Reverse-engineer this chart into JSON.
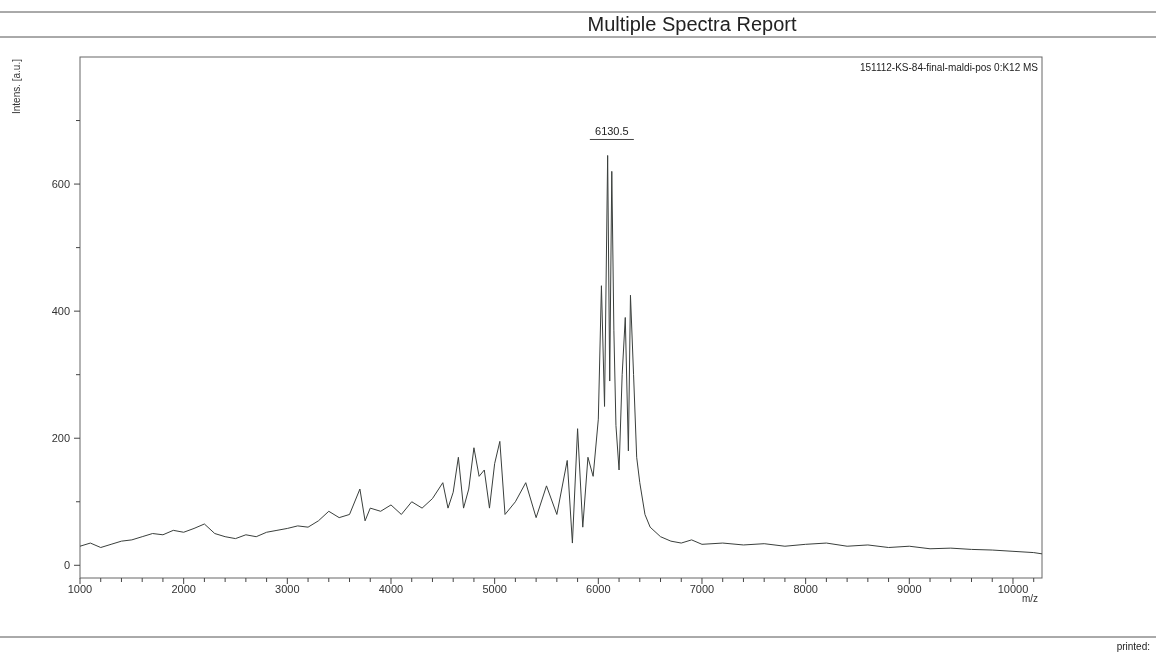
{
  "chart_data": {
    "type": "line",
    "title": "Multiple Spectra Report",
    "xlabel": "m/z",
    "ylabel": "Intens. [a.u.]",
    "annotations": [
      "151112-KS-84-final-maldi-pos 0:K12 MS",
      {
        "text": "6130.5",
        "x": 6130.5,
        "y": 645
      },
      "printed:"
    ],
    "xlim": [
      1000,
      10280
    ],
    "ylim": [
      -20,
      800
    ],
    "xticks": [
      1000,
      {
        "value": 1200,
        "label": null
      },
      {
        "value": 1400,
        "label": null
      },
      {
        "value": 1600,
        "label": null
      },
      {
        "value": 1800,
        "label": null
      },
      2000,
      {
        "value": 2200,
        "label": null
      },
      {
        "value": 2400,
        "label": null
      },
      {
        "value": 2600,
        "label": null
      },
      {
        "value": 2800,
        "label": null
      },
      3000,
      {
        "value": 3200,
        "label": null
      },
      {
        "value": 3400,
        "label": null
      },
      {
        "value": 3600,
        "label": null
      },
      {
        "value": 3800,
        "label": null
      },
      4000,
      {
        "value": 4200,
        "label": null
      },
      {
        "value": 4400,
        "label": null
      },
      {
        "value": 4600,
        "label": null
      },
      {
        "value": 4800,
        "label": null
      },
      5000,
      {
        "value": 5200,
        "label": null
      },
      {
        "value": 5400,
        "label": null
      },
      {
        "value": 5600,
        "label": null
      },
      {
        "value": 5800,
        "label": null
      },
      6000,
      {
        "value": 6200,
        "label": null
      },
      {
        "value": 6400,
        "label": null
      },
      {
        "value": 6600,
        "label": null
      },
      {
        "value": 6800,
        "label": null
      },
      7000,
      {
        "value": 7200,
        "label": null
      },
      {
        "value": 7400,
        "label": null
      },
      {
        "value": 7600,
        "label": null
      },
      {
        "value": 7800,
        "label": null
      },
      8000,
      {
        "value": 8200,
        "label": null
      },
      {
        "value": 8400,
        "label": null
      },
      {
        "value": 8600,
        "label": null
      },
      {
        "value": 8800,
        "label": null
      },
      9000,
      {
        "value": 9200,
        "label": null
      },
      {
        "value": 9400,
        "label": null
      },
      {
        "value": 9600,
        "label": null
      },
      {
        "value": 9800,
        "label": null
      },
      10000,
      {
        "value": 10200,
        "label": null
      }
    ],
    "yticks": [
      0,
      {
        "value": 100,
        "label": null
      },
      200,
      {
        "value": 300,
        "label": null
      },
      400,
      {
        "value": 500,
        "label": null
      },
      600,
      {
        "value": 700,
        "label": null
      }
    ],
    "grid": false,
    "marker": "none",
    "line_style": "solid",
    "series": [
      {
        "color": "#3a3f3c",
        "x": [
          1000,
          1100,
          1200,
          1300,
          1400,
          1500,
          1600,
          1700,
          1800,
          1900,
          2000,
          2100,
          2200,
          2300,
          2400,
          2500,
          2600,
          2700,
          2800,
          2900,
          3000,
          3100,
          3200,
          3300,
          3400,
          3500,
          3600,
          3700,
          3750,
          3800,
          3900,
          4000,
          4100,
          4200,
          4300,
          4400,
          4500,
          4550,
          4600,
          4650,
          4700,
          4750,
          4800,
          4850,
          4900,
          4950,
          5000,
          5050,
          5100,
          5200,
          5300,
          5400,
          5500,
          5600,
          5700,
          5750,
          5800,
          5850,
          5900,
          5950,
          6000,
          6030,
          6060,
          6090,
          6110,
          6130,
          6150,
          6170,
          6200,
          6230,
          6260,
          6290,
          6310,
          6340,
          6370,
          6400,
          6450,
          6500,
          6600,
          6700,
          6800,
          6900,
          7000,
          7200,
          7400,
          7600,
          7800,
          8000,
          8200,
          8400,
          8600,
          8800,
          9000,
          9200,
          9400,
          9600,
          9800,
          10000,
          10200,
          10280
        ],
        "values": [
          30,
          35,
          28,
          33,
          38,
          40,
          45,
          50,
          48,
          55,
          52,
          58,
          65,
          50,
          45,
          42,
          48,
          45,
          52,
          55,
          58,
          62,
          60,
          70,
          85,
          75,
          80,
          120,
          70,
          90,
          85,
          95,
          80,
          100,
          90,
          105,
          130,
          90,
          115,
          170,
          90,
          120,
          185,
          140,
          150,
          90,
          160,
          195,
          80,
          100,
          130,
          75,
          125,
          80,
          165,
          35,
          215,
          60,
          170,
          140,
          230,
          440,
          250,
          645,
          290,
          620,
          370,
          220,
          150,
          300,
          390,
          180,
          425,
          300,
          170,
          130,
          80,
          60,
          45,
          38,
          35,
          40,
          33,
          35,
          32,
          34,
          30,
          33,
          35,
          30,
          32,
          28,
          30,
          26,
          27,
          25,
          24,
          22,
          20,
          18
        ]
      }
    ]
  }
}
